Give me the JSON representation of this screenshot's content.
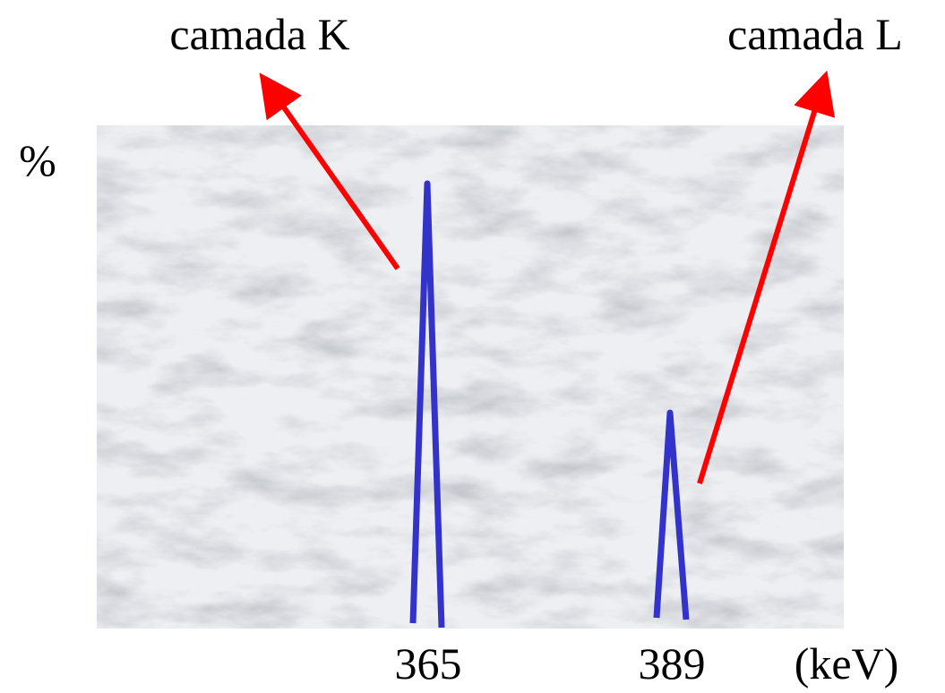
{
  "labels": {
    "shell_k": "camada K",
    "shell_l": "camada L"
  },
  "y_axis": "%",
  "peaks": [
    "365",
    "389"
  ],
  "x_unit": "(keV)"
}
